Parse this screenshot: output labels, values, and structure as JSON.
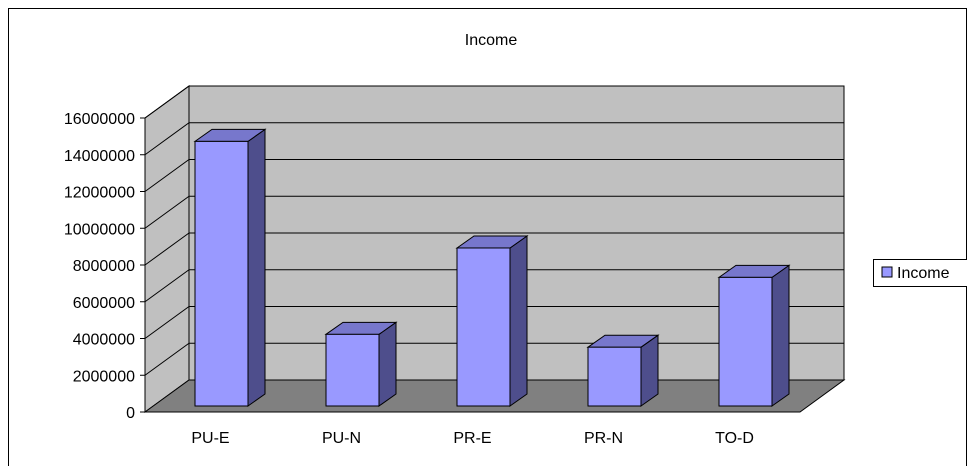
{
  "chart_data": {
    "type": "bar",
    "title": "Income",
    "categories": [
      "PU-E",
      "PU-N",
      "PR-E",
      "PR-N",
      "TO-D"
    ],
    "series": [
      {
        "name": "Income",
        "values": [
          14400000,
          3900000,
          8600000,
          3200000,
          7000000
        ]
      }
    ],
    "yticks": [
      "0",
      "2000000",
      "4000000",
      "6000000",
      "8000000",
      "10000000",
      "12000000",
      "14000000",
      "16000000"
    ],
    "ylim": [
      0,
      16000000
    ],
    "grid": true,
    "legend": "right",
    "style": "3d"
  },
  "colors": {
    "bar_front": "#9999ff",
    "bar_side": "#4e4e8c",
    "bar_top": "#7777cc",
    "wall": "#c0c0c0",
    "floor": "#808080"
  }
}
